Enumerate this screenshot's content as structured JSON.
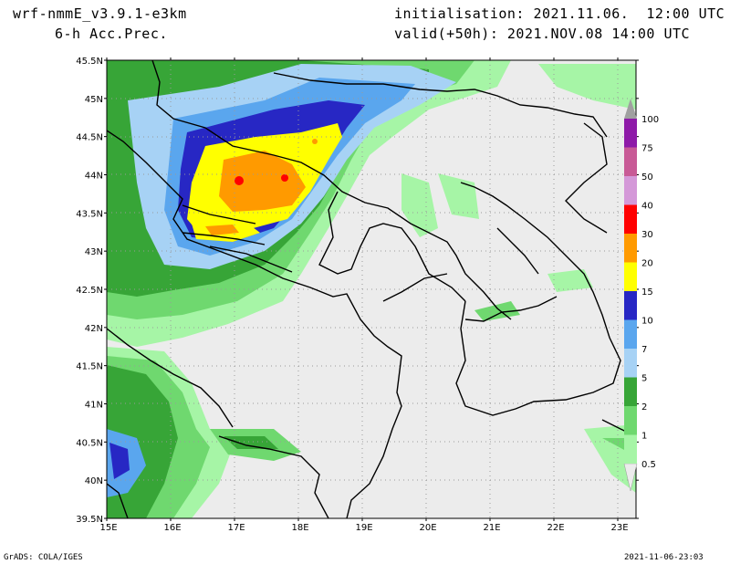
{
  "header": {
    "model": "wrf-nmmE_v3.9.1-e3km",
    "field": "6-h Acc.Prec.",
    "init": "initialisation: 2021.11.06.  12:00 UTC",
    "valid": "valid(+50h): 2021.NOV.08 14:00 UTC"
  },
  "axes": {
    "lat_labels": [
      "45.5N",
      "45N",
      "44.5N",
      "44N",
      "43.5N",
      "43N",
      "42.5N",
      "42N",
      "41.5N",
      "41N",
      "40.5N",
      "40N",
      "39.5N"
    ],
    "lon_labels": [
      "15E",
      "16E",
      "17E",
      "18E",
      "19E",
      "20E",
      "21E",
      "22E",
      "23E"
    ]
  },
  "legend": {
    "levels": [
      "0.5",
      "1",
      "2",
      "5",
      "7",
      "10",
      "15",
      "20",
      "30",
      "40",
      "50",
      "75",
      "100"
    ],
    "colors": [
      "#a6f5a6",
      "#6fd86f",
      "#37a537",
      "#a7d2f5",
      "#5aa6ee",
      "#2727c4",
      "#ffff00",
      "#ff9a00",
      "#ff0000",
      "#d498d8",
      "#c85a96",
      "#8e1aa8",
      "#a0a0a0"
    ]
  },
  "footer": {
    "left": "GrADS: COLA/IGES",
    "right": "2021-11-06-23:03"
  }
}
